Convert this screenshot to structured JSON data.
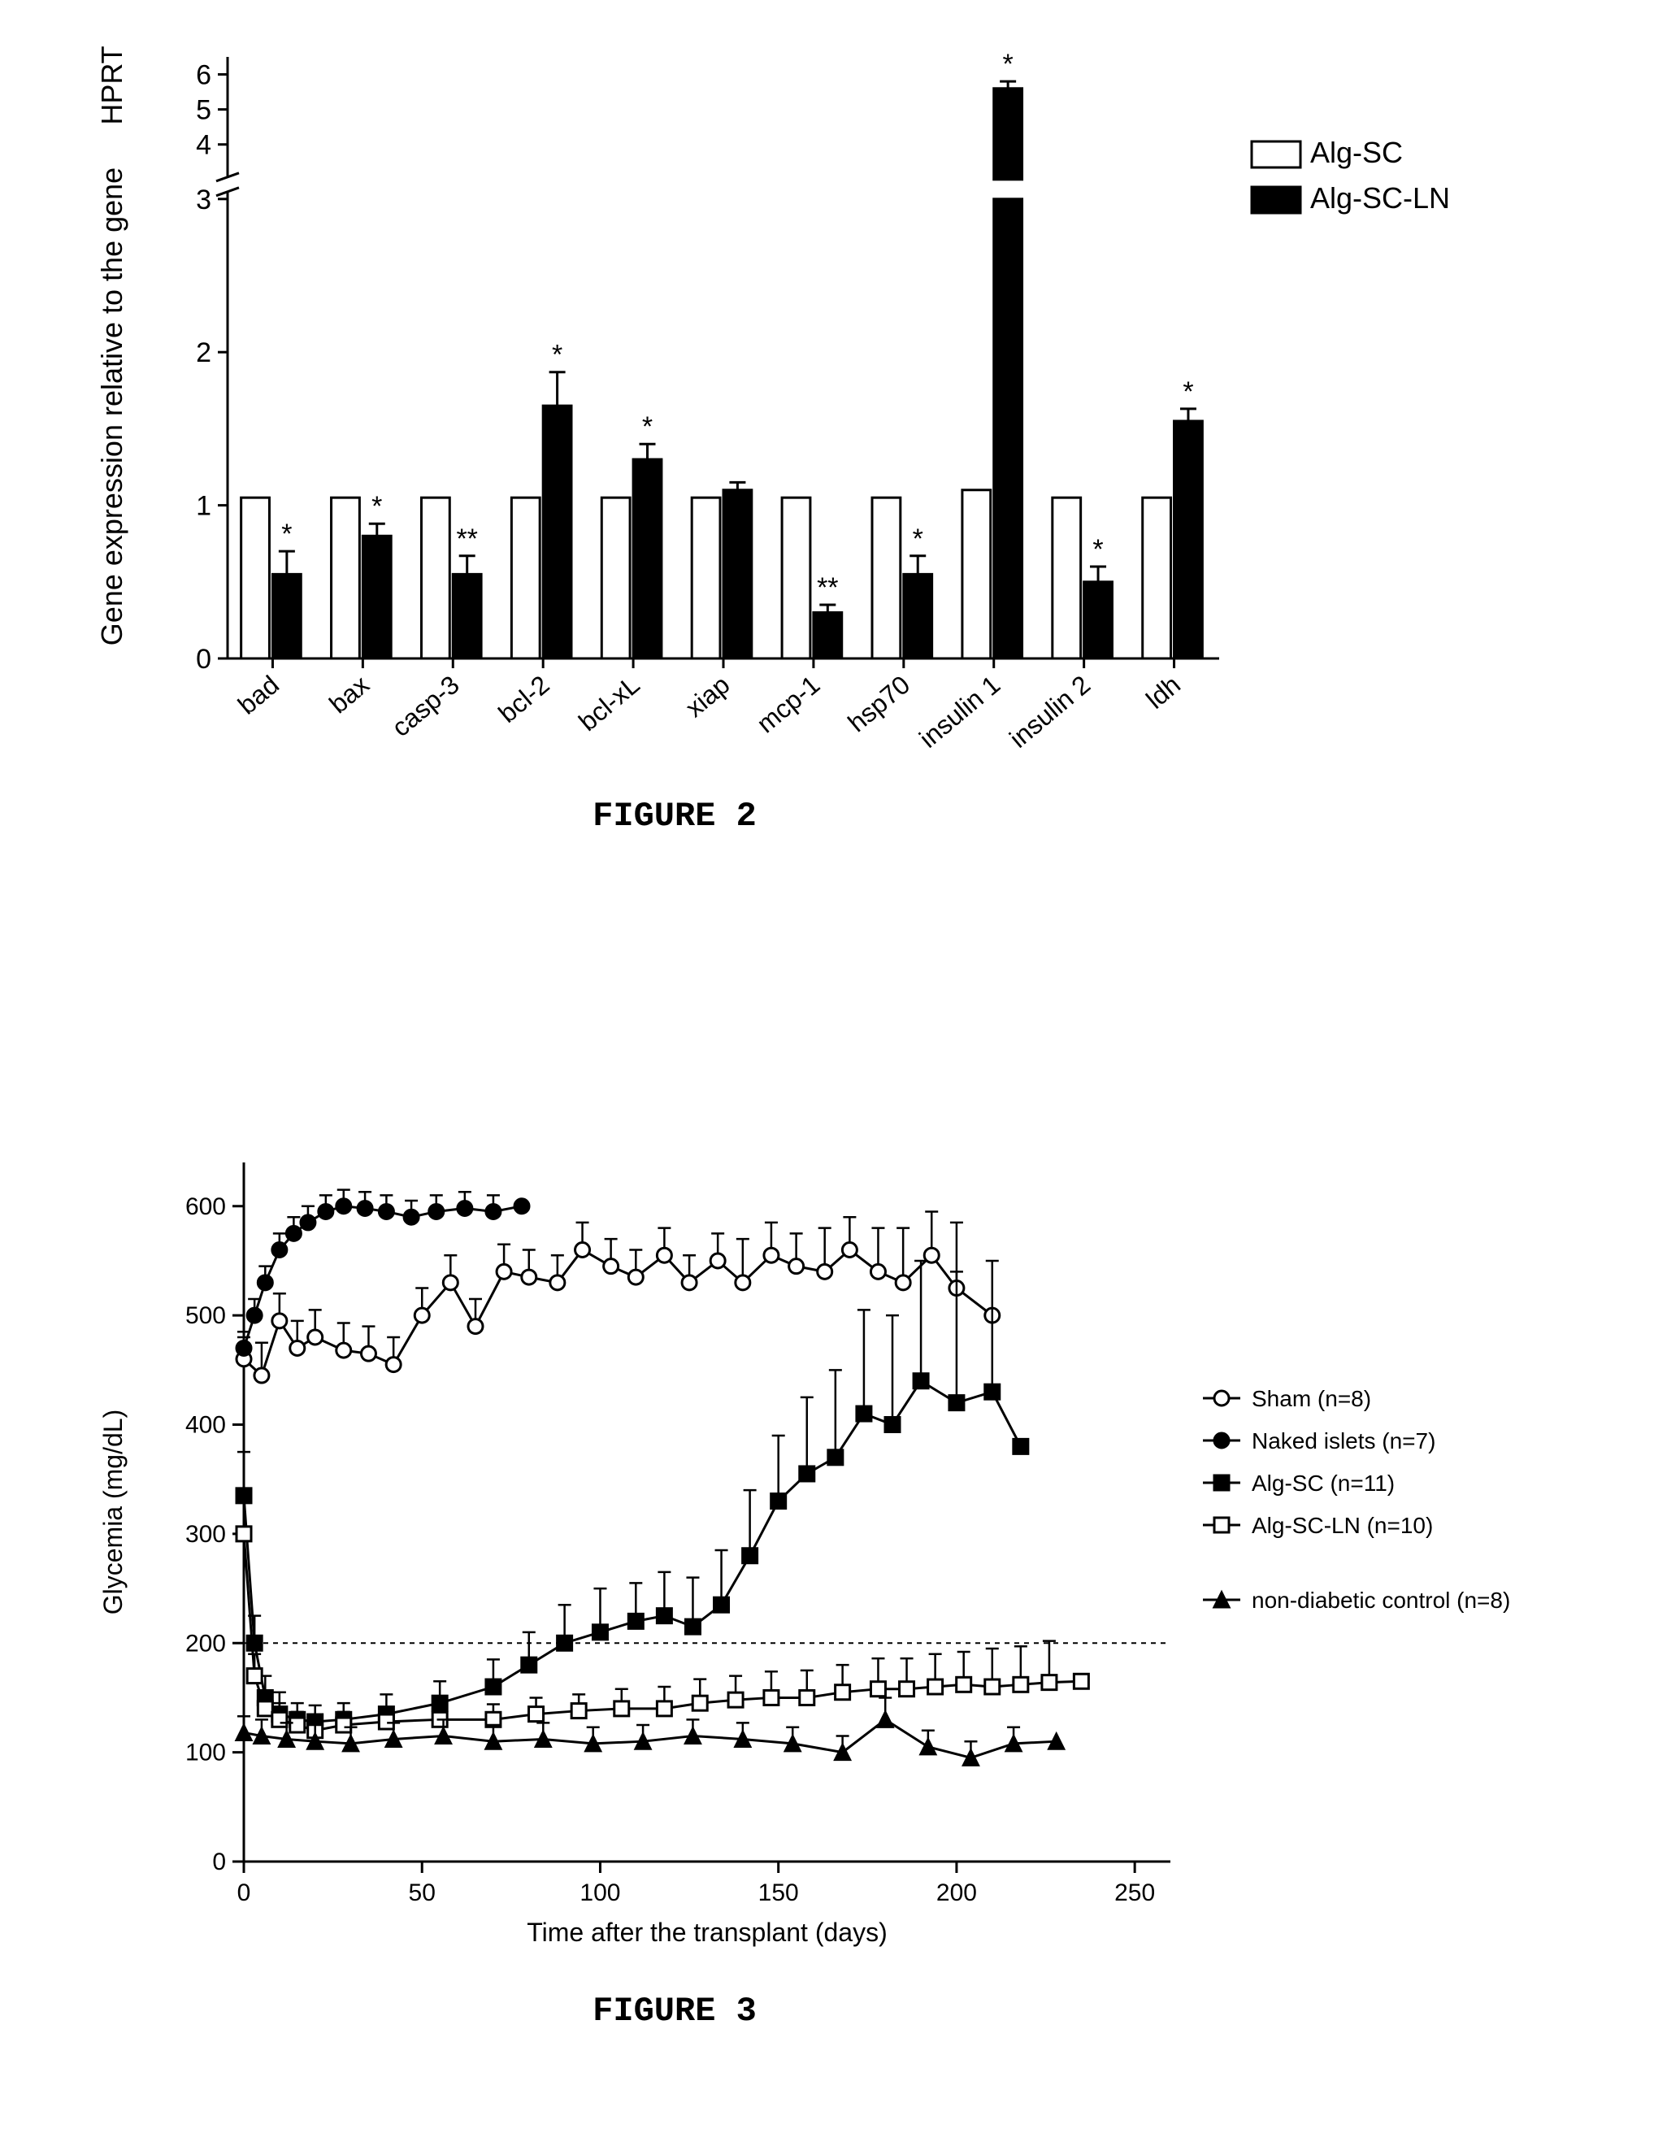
{
  "figure2": {
    "caption": "FIGURE 2",
    "type": "bar",
    "ylabel": "Gene expression relative to the gene  HPRT",
    "ylabel_fontsize": 36,
    "yaxis_lower": {
      "min": 0,
      "max": 3,
      "ticks": [
        0,
        1,
        2,
        3
      ]
    },
    "yaxis_upper": {
      "min": 3,
      "max": 6.5,
      "ticks": [
        3,
        4,
        5,
        6
      ]
    },
    "break_at": 3,
    "categories": [
      "bad",
      "bax",
      "casp-3",
      "bcl-2",
      "bcl-xL",
      "xiap",
      "mcp-1",
      "hsp70",
      "insulin 1",
      "insulin 2",
      "ldh"
    ],
    "category_fontsize": 32,
    "category_rotation": -40,
    "series": [
      {
        "name": "Alg-SC",
        "fill": "#ffffff",
        "stroke": "#000000",
        "values": [
          1.05,
          1.05,
          1.05,
          1.05,
          1.05,
          1.05,
          1.05,
          1.05,
          1.1,
          1.05,
          1.05
        ],
        "errors": [
          0,
          0,
          0,
          0,
          0,
          0,
          0,
          0,
          0,
          0,
          0
        ],
        "stars": [
          "",
          "",
          "",
          "",
          "",
          "",
          "",
          "",
          "",
          "",
          ""
        ]
      },
      {
        "name": "Alg-SC-LN",
        "fill": "#000000",
        "stroke": "#000000",
        "values": [
          0.55,
          0.8,
          0.55,
          1.65,
          1.3,
          1.1,
          0.3,
          0.55,
          5.6,
          0.5,
          1.55
        ],
        "errors": [
          0.15,
          0.08,
          0.12,
          0.22,
          0.1,
          0.05,
          0.05,
          0.12,
          0.2,
          0.1,
          0.08
        ],
        "stars": [
          "*",
          "*",
          "**",
          "*",
          "*",
          "",
          "**",
          "*",
          "*",
          "*",
          "*"
        ]
      }
    ],
    "legend_items": [
      {
        "label": "Alg-SC",
        "fill": "#ffffff",
        "stroke": "#000000"
      },
      {
        "label": "Alg-SC-LN",
        "fill": "#000000",
        "stroke": "#000000"
      }
    ],
    "legend_fontsize": 36,
    "bar_group_width": 0.7,
    "axis_color": "#000000",
    "axis_stroke_width": 3,
    "tick_fontsize": 34,
    "background_color": "#ffffff"
  },
  "figure3": {
    "caption": "FIGURE 3",
    "type": "line",
    "xlabel": "Time after the transplant  (days)",
    "ylabel": "Glycemia   (mg/dL)",
    "xlabel_fontsize": 32,
    "ylabel_fontsize": 32,
    "xlim": [
      0,
      260
    ],
    "ylim": [
      0,
      640
    ],
    "xticks": [
      0,
      50,
      100,
      150,
      200,
      250
    ],
    "yticks": [
      0,
      100,
      200,
      300,
      400,
      500,
      600
    ],
    "tick_fontsize": 30,
    "hline_y": 200,
    "hline_dash": "6,6",
    "axis_color": "#000000",
    "axis_stroke_width": 3,
    "background_color": "#ffffff",
    "legend_fontsize": 28,
    "series": [
      {
        "name": "Sham (n=8)",
        "marker": "circle-open",
        "fill": "#ffffff",
        "stroke": "#000000",
        "x": [
          0,
          5,
          10,
          15,
          20,
          28,
          35,
          42,
          50,
          58,
          65,
          73,
          80,
          88,
          95,
          103,
          110,
          118,
          125,
          133,
          140,
          148,
          155,
          163,
          170,
          178,
          185,
          193,
          200,
          210
        ],
        "y": [
          460,
          445,
          495,
          470,
          480,
          468,
          465,
          455,
          500,
          530,
          490,
          540,
          535,
          530,
          560,
          545,
          535,
          555,
          530,
          550,
          530,
          555,
          545,
          540,
          560,
          540,
          530,
          555,
          525,
          500
        ],
        "err": [
          20,
          30,
          25,
          25,
          25,
          25,
          25,
          25,
          25,
          25,
          25,
          25,
          25,
          25,
          25,
          25,
          25,
          25,
          25,
          25,
          40,
          30,
          30,
          40,
          30,
          40,
          50,
          40,
          60,
          0
        ]
      },
      {
        "name": "Naked islets (n=7)",
        "marker": "circle",
        "fill": "#000000",
        "stroke": "#000000",
        "x": [
          0,
          3,
          6,
          10,
          14,
          18,
          23,
          28,
          34,
          40,
          47,
          54,
          62,
          70,
          78
        ],
        "y": [
          470,
          500,
          530,
          560,
          575,
          585,
          595,
          600,
          598,
          595,
          590,
          595,
          598,
          595,
          600
        ],
        "err": [
          15,
          15,
          15,
          15,
          15,
          15,
          15,
          15,
          15,
          15,
          15,
          15,
          15,
          15,
          0
        ]
      },
      {
        "name": "Alg-SC (n=11)",
        "marker": "square",
        "fill": "#000000",
        "stroke": "#000000",
        "x": [
          0,
          3,
          6,
          10,
          15,
          20,
          28,
          40,
          55,
          70,
          80,
          90,
          100,
          110,
          118,
          126,
          134,
          142,
          150,
          158,
          166,
          174,
          182,
          190,
          200,
          210,
          218
        ],
        "y": [
          335,
          200,
          150,
          135,
          130,
          128,
          130,
          135,
          145,
          160,
          180,
          200,
          210,
          220,
          225,
          215,
          235,
          280,
          330,
          355,
          370,
          410,
          400,
          440,
          420,
          430,
          380
        ],
        "err": [
          40,
          25,
          20,
          20,
          15,
          15,
          15,
          18,
          20,
          25,
          30,
          35,
          40,
          35,
          40,
          45,
          50,
          60,
          60,
          70,
          80,
          95,
          100,
          110,
          120,
          120,
          0
        ]
      },
      {
        "name": "Alg-SC-LN (n=10)",
        "marker": "square-open",
        "fill": "#ffffff",
        "stroke": "#000000",
        "x": [
          0,
          3,
          6,
          10,
          15,
          20,
          28,
          40,
          55,
          70,
          82,
          94,
          106,
          118,
          128,
          138,
          148,
          158,
          168,
          178,
          186,
          194,
          202,
          210,
          218,
          226,
          235
        ],
        "y": [
          300,
          170,
          140,
          130,
          125,
          120,
          125,
          128,
          130,
          130,
          135,
          138,
          140,
          140,
          145,
          148,
          150,
          150,
          155,
          158,
          158,
          160,
          162,
          160,
          162,
          164,
          165
        ],
        "err": [
          30,
          20,
          15,
          15,
          12,
          12,
          12,
          12,
          12,
          14,
          15,
          15,
          18,
          20,
          22,
          22,
          24,
          25,
          25,
          28,
          28,
          30,
          30,
          35,
          35,
          38,
          0
        ]
      },
      {
        "name": "non-diabetic control  (n=8)",
        "marker": "triangle",
        "fill": "#000000",
        "stroke": "#000000",
        "x": [
          0,
          5,
          12,
          20,
          30,
          42,
          56,
          70,
          84,
          98,
          112,
          126,
          140,
          154,
          168,
          180,
          192,
          204,
          216,
          228
        ],
        "y": [
          118,
          115,
          112,
          110,
          108,
          112,
          115,
          110,
          112,
          108,
          110,
          115,
          112,
          108,
          100,
          130,
          105,
          95,
          108,
          110
        ],
        "err": [
          15,
          15,
          15,
          15,
          15,
          15,
          15,
          15,
          15,
          15,
          15,
          15,
          15,
          15,
          15,
          20,
          15,
          15,
          15,
          0
        ]
      }
    ]
  }
}
